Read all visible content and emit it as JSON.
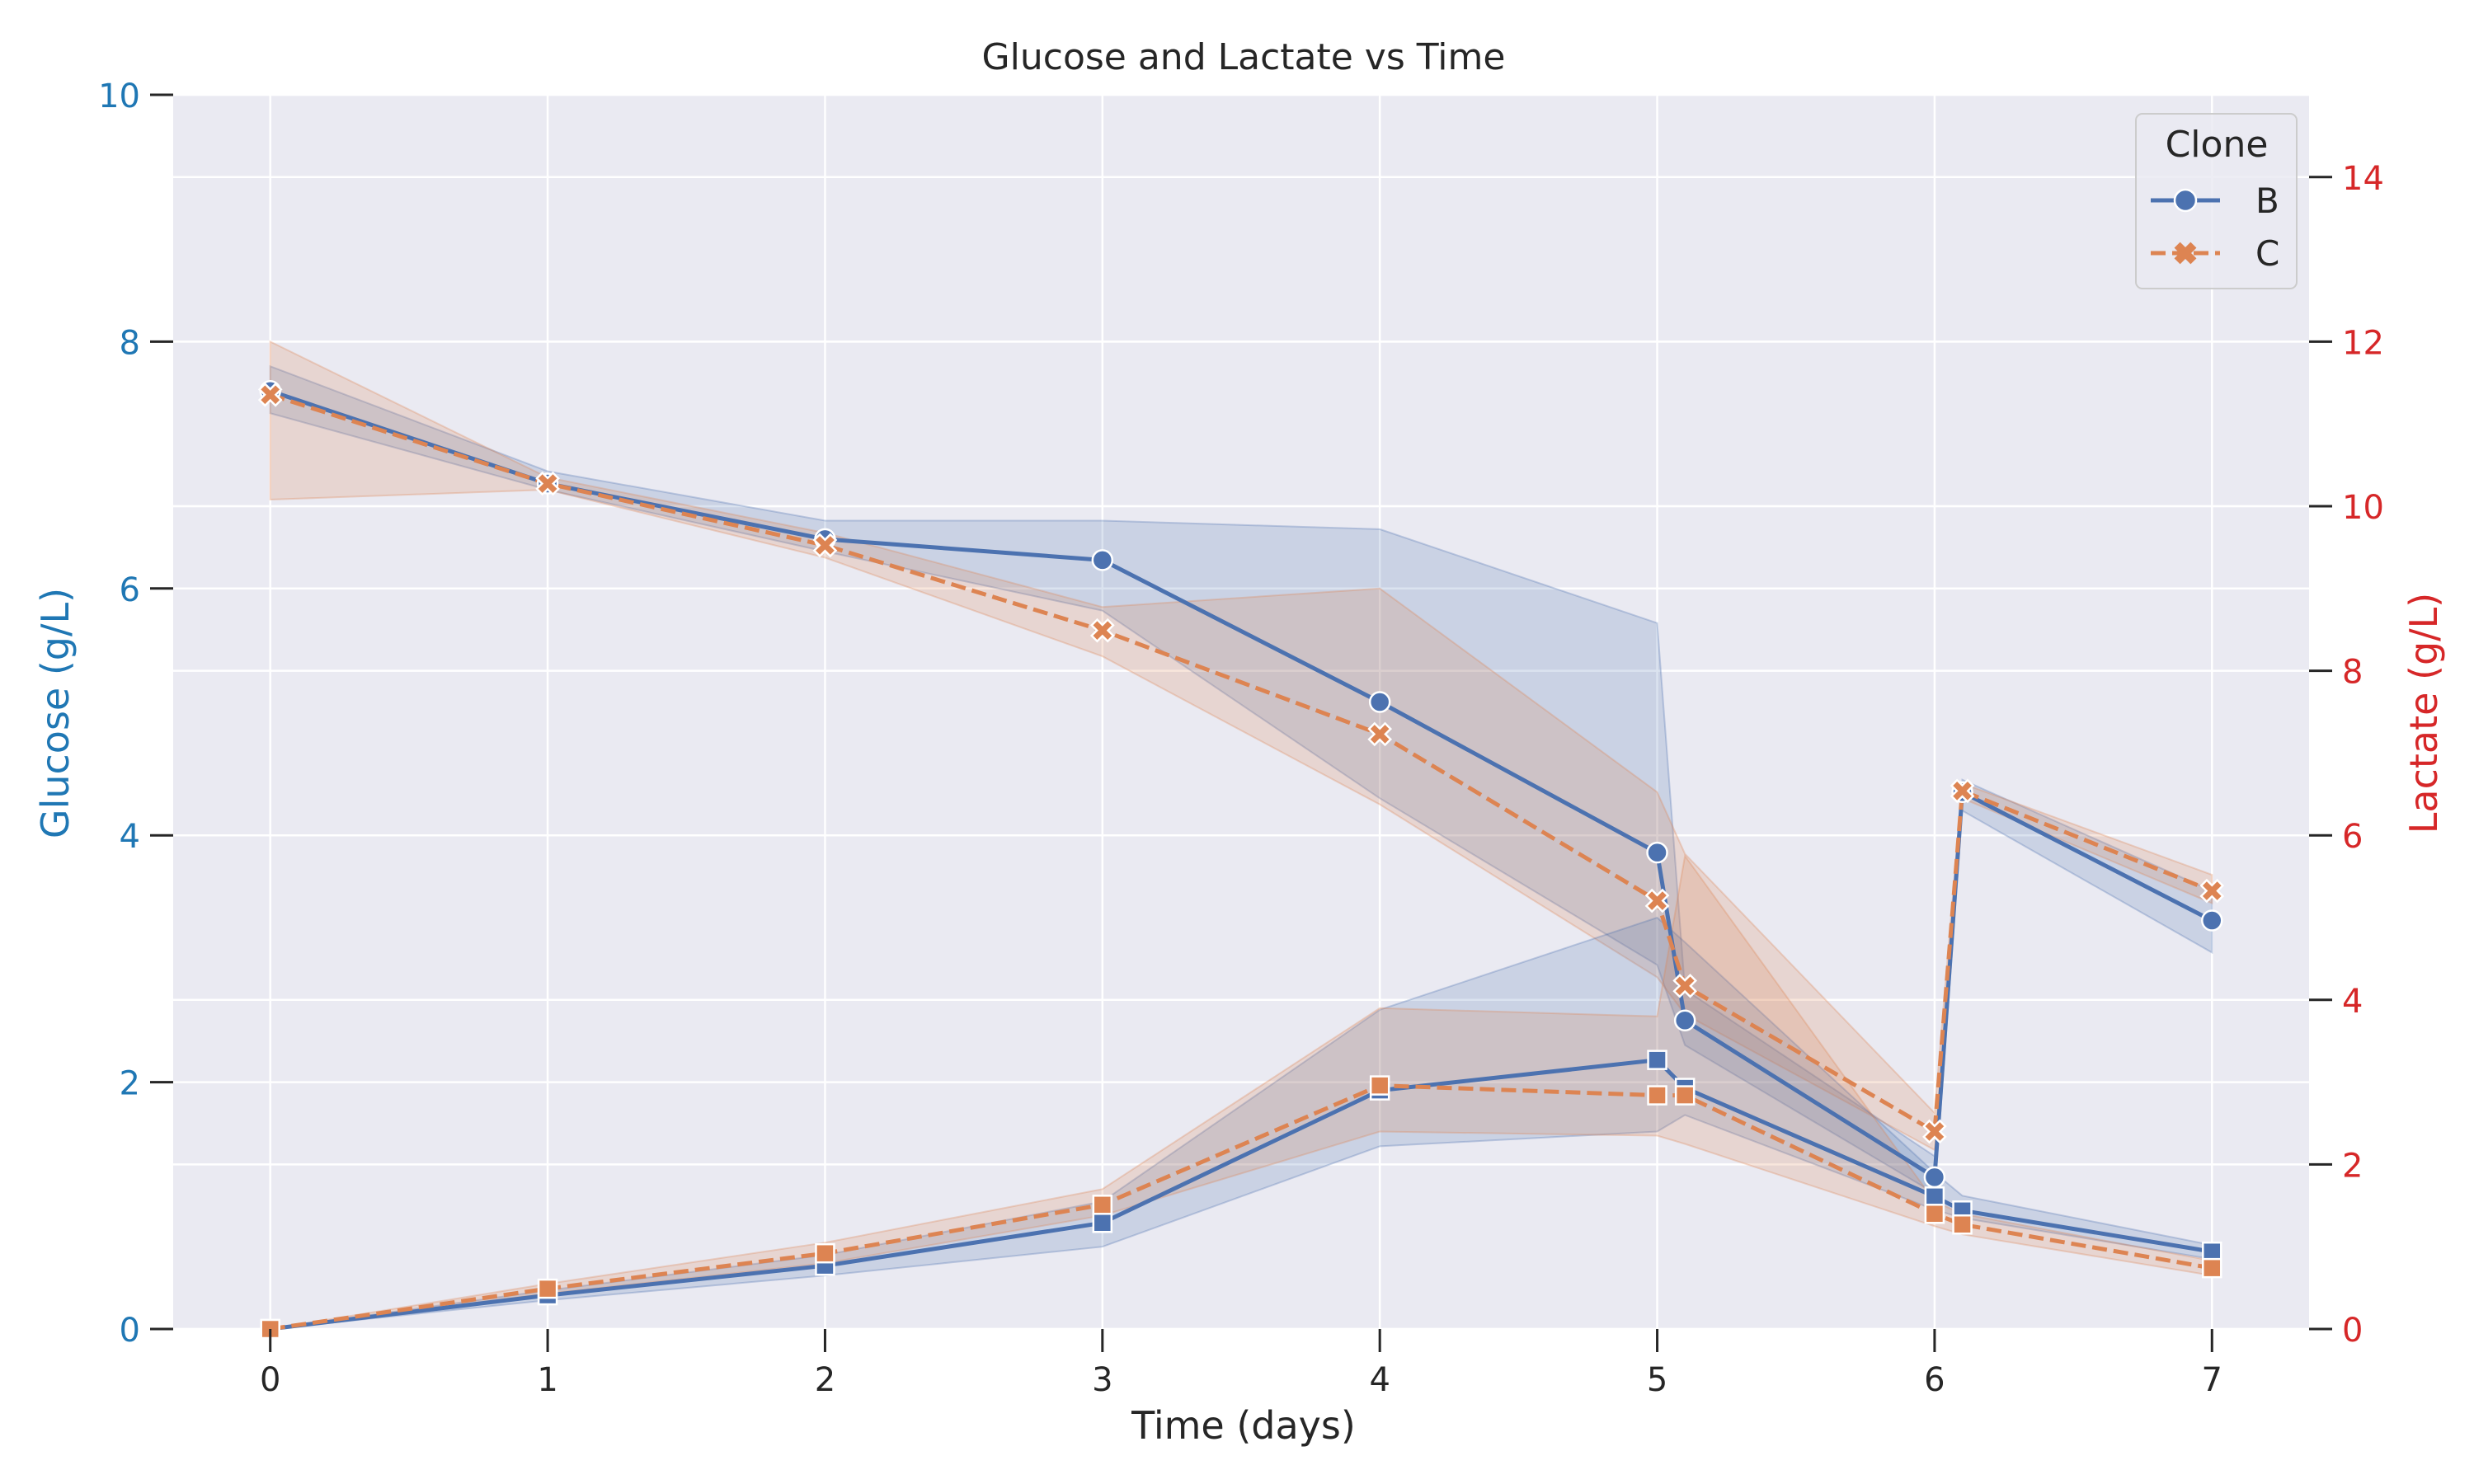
{
  "colors": {
    "background": "#eaeaf2",
    "grid": "#ffffff",
    "clone_b": "#4c72b0",
    "clone_c": "#dd8452",
    "left_axis": "#1f77b4",
    "right_axis": "#d62728",
    "text": "#262626"
  },
  "chart_data": {
    "type": "line",
    "title": "Glucose and Lactate vs Time",
    "xlabel": "Time (days)",
    "ylabel_left": "Glucose (g/L)",
    "ylabel_right": "Lactate (g/L)",
    "xlim": [
      -0.35,
      7.35
    ],
    "ylim_left": [
      0,
      10
    ],
    "ylim_right": [
      0,
      15
    ],
    "x_ticks": [
      "0",
      "1",
      "2",
      "3",
      "4",
      "5",
      "6",
      "7"
    ],
    "y_ticks_left": [
      "0",
      "2",
      "4",
      "6",
      "8",
      "10"
    ],
    "y_ticks_right": [
      "0",
      "2",
      "4",
      "6",
      "8",
      "10",
      "12",
      "14"
    ],
    "grid": true,
    "legend": {
      "title": "Clone",
      "placement": "top-right",
      "entries": [
        {
          "label": "B",
          "marker": "circle",
          "dash": "solid"
        },
        {
          "label": "C",
          "marker": "x",
          "dash": "dashed"
        }
      ]
    },
    "series": [
      {
        "name": "B",
        "measure": "glucose",
        "axis": "left",
        "clone": "B",
        "marker": "circle",
        "dash": "solid",
        "x": [
          0,
          1,
          2,
          3,
          4,
          5,
          5.1,
          6,
          6.1,
          7
        ],
        "y": [
          7.6,
          6.85,
          6.4,
          6.23,
          5.08,
          3.86,
          2.5,
          1.23,
          4.35,
          3.31
        ],
        "lo": [
          7.42,
          6.8,
          6.3,
          5.82,
          4.3,
          2.95,
          2.3,
          1.1,
          4.2,
          3.05
        ],
        "hi": [
          7.8,
          6.95,
          6.55,
          6.55,
          6.48,
          5.72,
          2.75,
          1.4,
          4.45,
          3.55
        ]
      },
      {
        "name": "C",
        "measure": "glucose",
        "axis": "left",
        "clone": "C",
        "marker": "x",
        "dash": "dashed",
        "x": [
          0,
          1,
          2,
          3,
          4,
          5,
          5.1,
          6,
          6.1,
          7
        ],
        "y": [
          7.57,
          6.85,
          6.35,
          5.66,
          4.82,
          3.47,
          2.78,
          1.6,
          4.36,
          3.55
        ],
        "lo": [
          6.72,
          6.8,
          6.25,
          5.45,
          4.25,
          2.85,
          2.55,
          1.45,
          4.3,
          3.45
        ],
        "hi": [
          8.0,
          6.9,
          6.45,
          5.85,
          6.0,
          4.35,
          3.85,
          1.75,
          4.42,
          3.68
        ]
      },
      {
        "name": "B",
        "measure": "lactate",
        "axis": "right",
        "clone": "B",
        "marker": "square",
        "dash": "solid",
        "x": [
          0,
          1,
          2,
          3,
          4,
          5,
          5.1,
          6,
          6.1,
          7
        ],
        "y": [
          0.0,
          0.41,
          0.77,
          1.29,
          2.9,
          3.27,
          2.93,
          1.61,
          1.44,
          0.94
        ],
        "lo": [
          0.0,
          0.35,
          0.65,
          1.0,
          2.22,
          2.4,
          2.6,
          1.45,
          1.35,
          0.85
        ],
        "hi": [
          0.0,
          0.47,
          0.9,
          1.55,
          3.88,
          5.0,
          4.7,
          1.9,
          1.62,
          1.02
        ]
      },
      {
        "name": "C",
        "measure": "lactate",
        "axis": "right",
        "clone": "C",
        "marker": "square",
        "dash": "dashed",
        "x": [
          0,
          1,
          2,
          3,
          4,
          5,
          5.1,
          6,
          6.1,
          7
        ],
        "y": [
          0.0,
          0.49,
          0.92,
          1.51,
          2.96,
          2.84,
          2.84,
          1.4,
          1.27,
          0.74
        ],
        "lo": [
          0.0,
          0.43,
          0.8,
          1.38,
          2.4,
          2.35,
          2.25,
          1.25,
          1.15,
          0.65
        ],
        "hi": [
          0.0,
          0.55,
          1.05,
          1.7,
          3.9,
          3.8,
          5.75,
          1.55,
          1.4,
          0.83
        ]
      }
    ]
  }
}
